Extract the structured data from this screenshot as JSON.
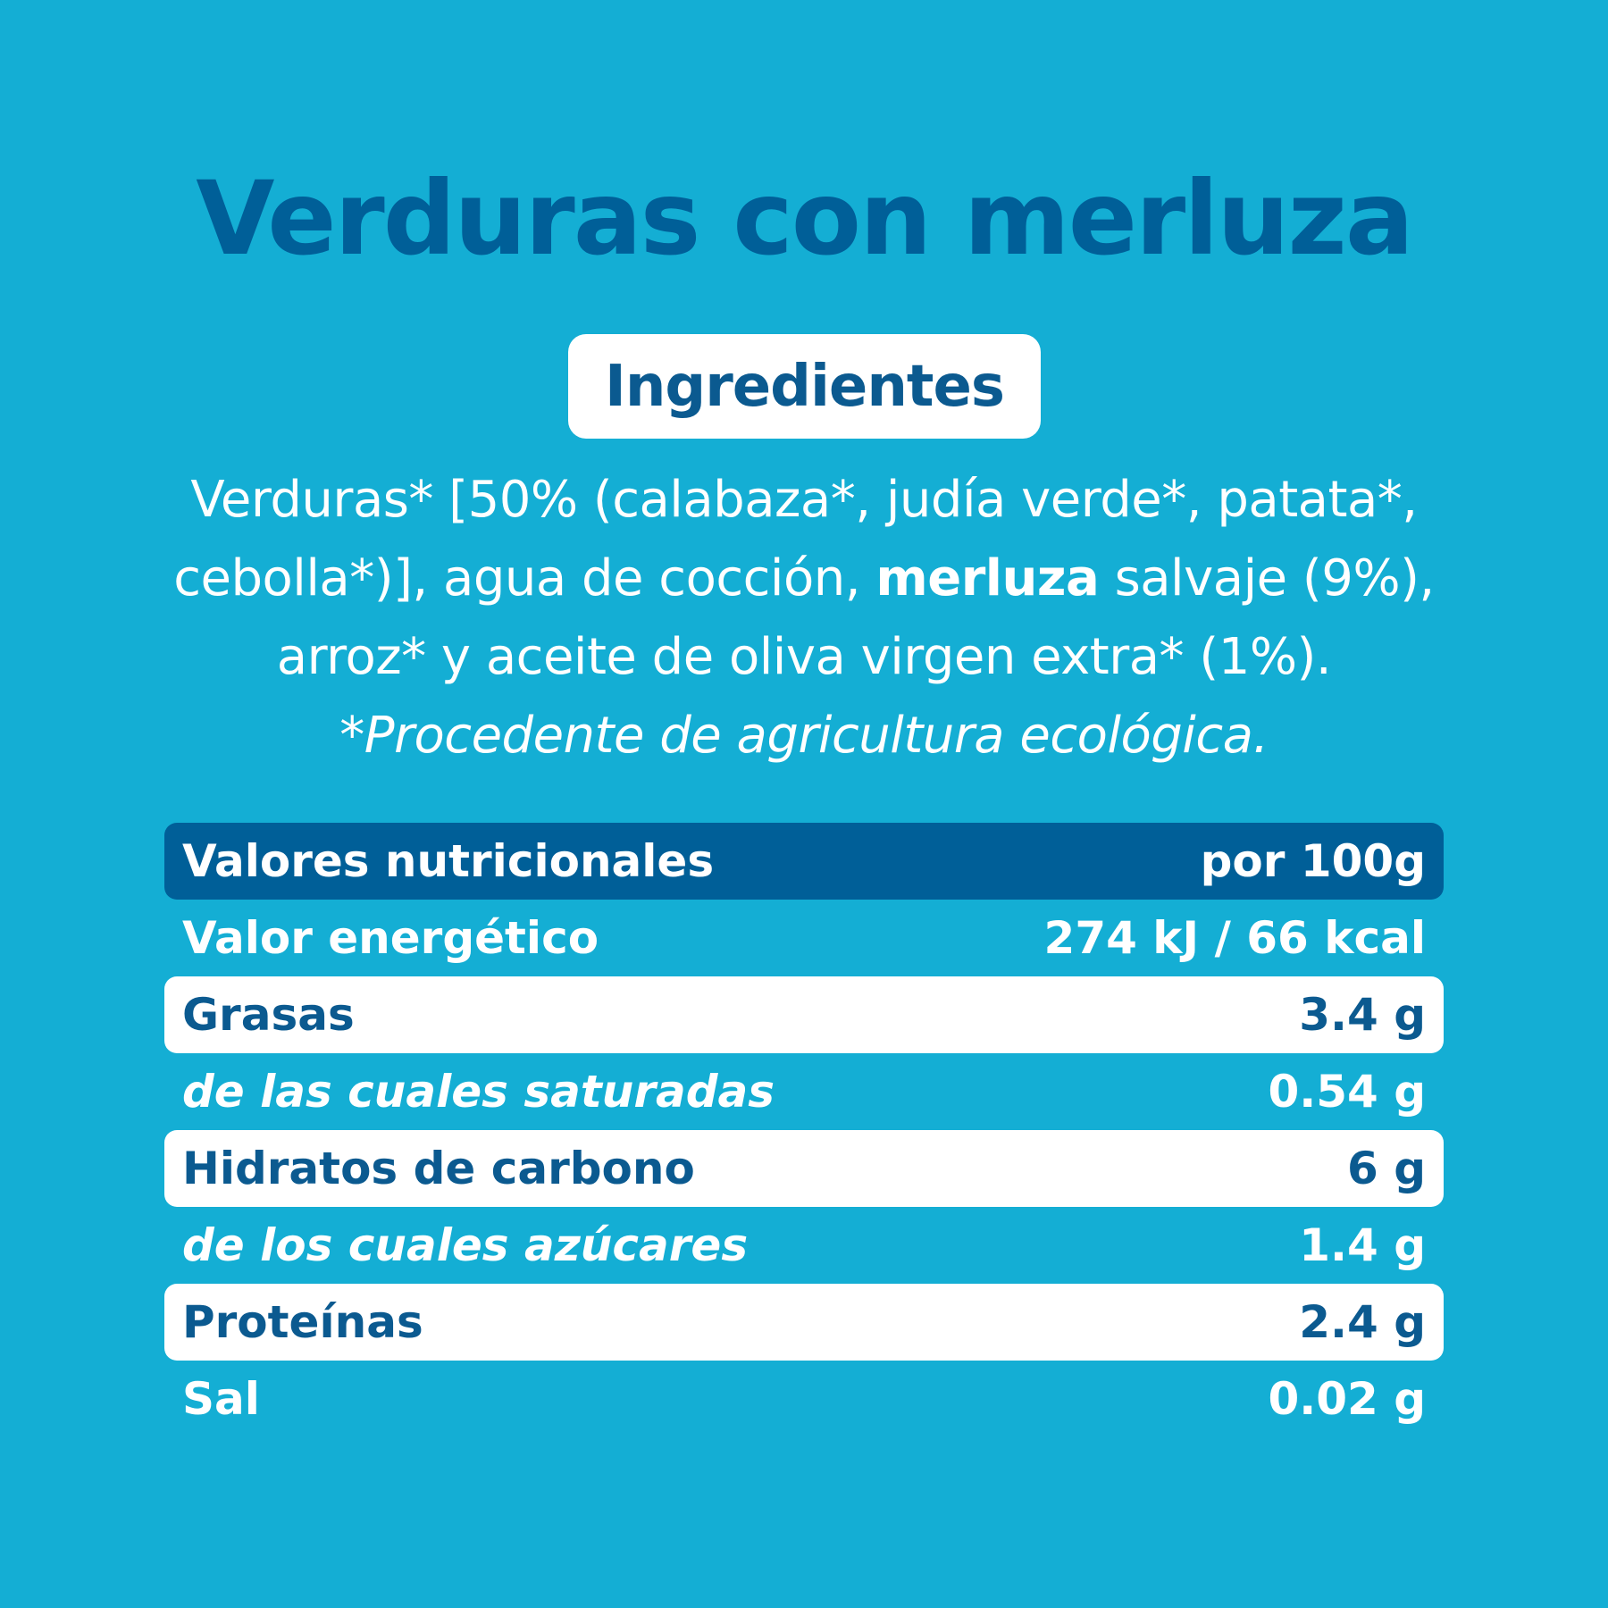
{
  "title": "Verduras con merluza",
  "ingredients_heading": "Ingredientes",
  "ingredients": {
    "line1": "Verduras* [50% (calabaza*, judía verde*, patata*,",
    "line2_before": "cebolla*)], agua de cocción, ",
    "line2_bold": "merluza",
    "line2_after": " salvaje (9%),",
    "line3": "arroz* y aceite de oliva virgen extra* (1%).",
    "note": "*Procedente de agricultura ecológica."
  },
  "nutrition": {
    "header_label": "Valores nutricionales",
    "header_value": "por 100g",
    "rows": [
      {
        "label": "Valor energético",
        "value": "274 kJ / 66 kcal"
      },
      {
        "label": "Grasas",
        "value": "3.4 g"
      },
      {
        "label": "de las cuales saturadas",
        "value": "0.54 g"
      },
      {
        "label": "Hidratos de carbono",
        "value": "6 g"
      },
      {
        "label": "de los cuales azúcares",
        "value": "1.4 g"
      },
      {
        "label": "Proteínas",
        "value": "2.4 g"
      },
      {
        "label": "Sal",
        "value": "0.02 g"
      }
    ]
  },
  "colors": {
    "background": "#14aed4",
    "dark_blue": "#005f98",
    "text_blue": "#0b5a90",
    "white": "#ffffff"
  }
}
